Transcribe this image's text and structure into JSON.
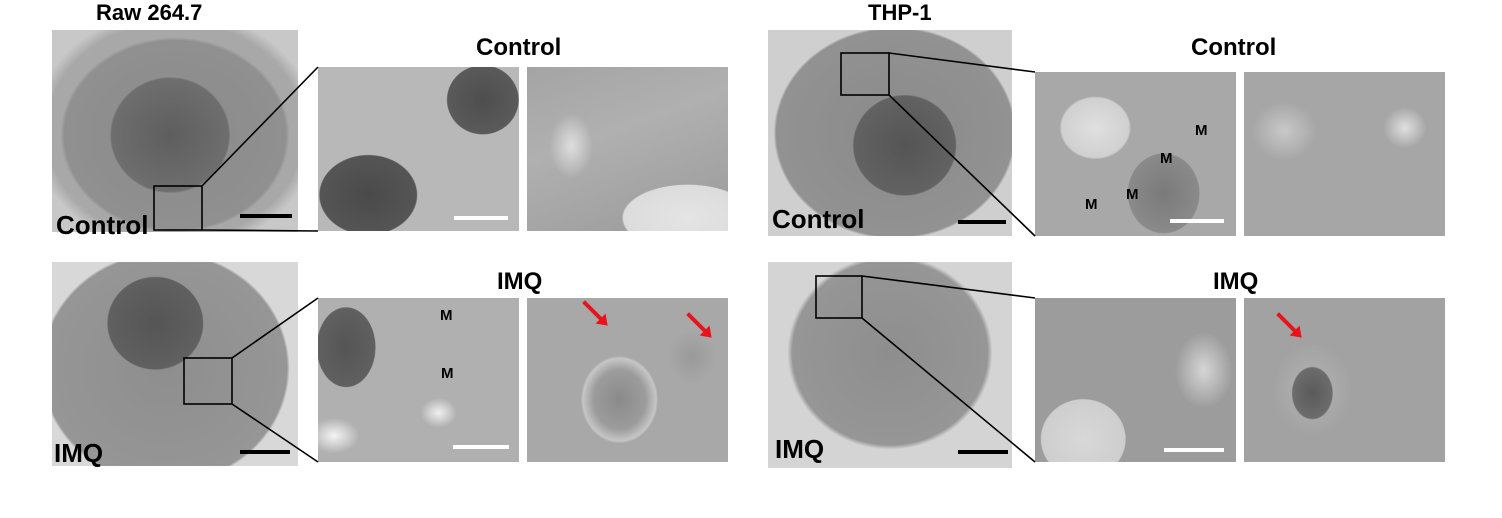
{
  "panels": {
    "raw": {
      "title": "Raw 264.7",
      "control_label": "Control",
      "imq_label": "IMQ",
      "control_header": "Control",
      "imq_header": "IMQ"
    },
    "thp": {
      "title": "THP-1",
      "control_label": "Control",
      "imq_label": "IMQ",
      "control_header": "Control",
      "imq_header": "IMQ"
    }
  },
  "mito_mark": "M",
  "colors": {
    "arrow": "#e8141b",
    "scale_white": "#ffffff",
    "scale_black": "#000000"
  }
}
